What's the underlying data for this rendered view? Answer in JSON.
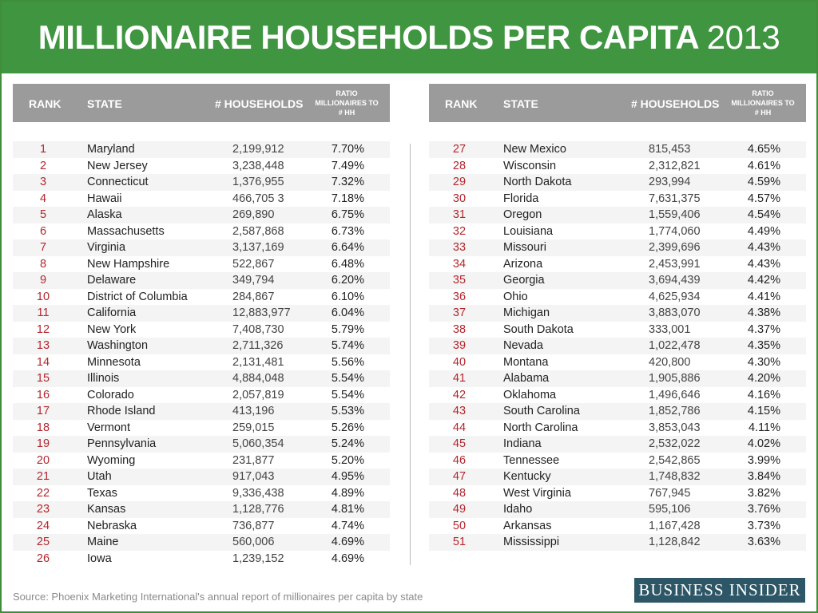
{
  "title": {
    "main": "MILLIONAIRE HOUSEHOLDS PER CAPITA",
    "year": "2013"
  },
  "headers": {
    "rank": "RANK",
    "state": "STATE",
    "households": "# HOUSEHOLDS",
    "ratio": "RATIO MILLIONAIRES TO # HH"
  },
  "left_rows": [
    [
      "1",
      "Maryland",
      "2,199,912",
      "7.70%"
    ],
    [
      "2",
      "New Jersey",
      "3,238,448",
      "7.49%"
    ],
    [
      "3",
      "Connecticut",
      "1,376,955",
      "7.32%"
    ],
    [
      "4",
      "Hawaii",
      "466,705 3",
      "7.18%"
    ],
    [
      "5",
      "Alaska",
      "269,890",
      "6.75%"
    ],
    [
      "6",
      "Massachusetts",
      "2,587,868",
      "6.73%"
    ],
    [
      "7",
      "Virginia",
      "3,137,169",
      "6.64%"
    ],
    [
      "8",
      "New Hampshire",
      "522,867",
      "6.48%"
    ],
    [
      "9",
      "Delaware",
      "349,794",
      "6.20%"
    ],
    [
      "10",
      "District of Columbia",
      "284,867",
      "6.10%"
    ],
    [
      "11",
      "California",
      "12,883,977",
      "6.04%"
    ],
    [
      "12",
      "New York",
      "7,408,730",
      "5.79%"
    ],
    [
      "13",
      "Washington",
      "2,711,326",
      "5.74%"
    ],
    [
      "14",
      "Minnesota",
      "2,131,481",
      "5.56%"
    ],
    [
      "15",
      "Illinois",
      "4,884,048",
      "5.54%"
    ],
    [
      "16",
      "Colorado",
      "2,057,819",
      "5.54%"
    ],
    [
      "17",
      "Rhode Island",
      "413,196",
      "5.53%"
    ],
    [
      "18",
      "Vermont",
      "259,015",
      "5.26%"
    ],
    [
      "19",
      "Pennsylvania",
      "5,060,354",
      "5.24%"
    ],
    [
      "20",
      "Wyoming",
      "231,877",
      "5.20%"
    ],
    [
      "21",
      "Utah",
      "917,043",
      "4.95%"
    ],
    [
      "22",
      "Texas",
      "9,336,438",
      "4.89%"
    ],
    [
      "23",
      "Kansas",
      "1,128,776",
      "4.81%"
    ],
    [
      "24",
      "Nebraska",
      "736,877",
      "4.74%"
    ],
    [
      "25",
      "Maine",
      "560,006",
      "4.69%"
    ],
    [
      "26",
      "Iowa",
      "1,239,152",
      "4.69%"
    ]
  ],
  "right_rows": [
    [
      "27",
      "New Mexico",
      "815,453",
      "4.65%"
    ],
    [
      "28",
      "Wisconsin",
      "2,312,821",
      "4.61%"
    ],
    [
      "29",
      "North Dakota",
      "293,994",
      "4.59%"
    ],
    [
      "30",
      "Florida",
      "7,631,375",
      "4.57%"
    ],
    [
      "31",
      "Oregon",
      "1,559,406",
      "4.54%"
    ],
    [
      "32",
      "Louisiana",
      "1,774,060",
      "4.49%"
    ],
    [
      "33",
      "Missouri",
      "2,399,696",
      "4.43%"
    ],
    [
      "34",
      "Arizona",
      "2,453,991",
      "4.43%"
    ],
    [
      "35",
      "Georgia",
      "3,694,439",
      "4.42%"
    ],
    [
      "36",
      "Ohio",
      "4,625,934",
      "4.41%"
    ],
    [
      "37",
      "Michigan",
      "3,883,070",
      "4.38%"
    ],
    [
      "38",
      "South Dakota",
      "333,001",
      "4.37%"
    ],
    [
      "39",
      "Nevada",
      "1,022,478",
      "4.35%"
    ],
    [
      "40",
      "Montana",
      "420,800",
      "4.30%"
    ],
    [
      "41",
      "Alabama",
      "1,905,886",
      "4.20%"
    ],
    [
      "42",
      "Oklahoma",
      "1,496,646",
      "4.16%"
    ],
    [
      "43",
      "South Carolina",
      "1,852,786",
      "4.15%"
    ],
    [
      "44",
      "North Carolina",
      "3,853,043",
      "4.11%"
    ],
    [
      "45",
      "Indiana",
      "2,532,022",
      "4.02%"
    ],
    [
      "46",
      "Tennessee",
      "2,542,865",
      "3.99%"
    ],
    [
      "47",
      "Kentucky",
      "1,748,832",
      "3.84%"
    ],
    [
      "48",
      "West Virginia",
      "767,945",
      "3.82%"
    ],
    [
      "49",
      "Idaho",
      "595,106",
      "3.76%"
    ],
    [
      "50",
      "Arkansas",
      "1,167,428",
      "3.73%"
    ],
    [
      "51",
      "Mississippi",
      "1,128,842",
      "3.63%"
    ]
  ],
  "source": "Source: Phoenix Marketing International's annual report of millionaires per capita by state",
  "logo": "BUSINESS INSIDER",
  "colors": {
    "banner": "#3f9540",
    "header": "#9b9b9b",
    "rank": "#b3262d",
    "logo": "#2d5667"
  }
}
